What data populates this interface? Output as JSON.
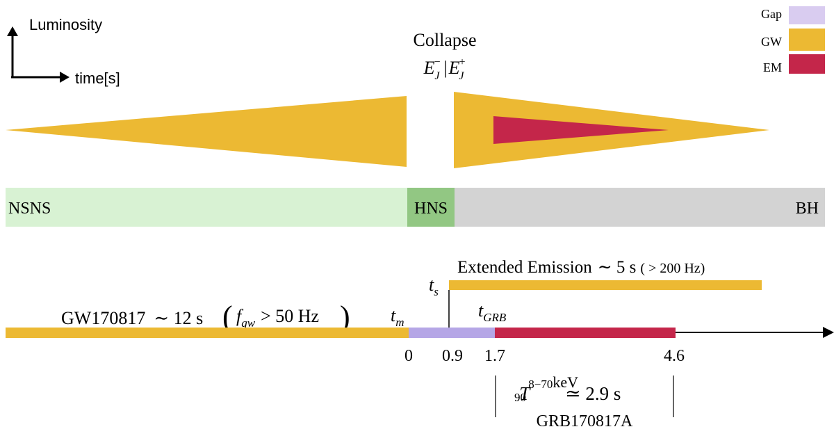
{
  "axes_hint": {
    "y_label": "Luminosity",
    "x_label": "time[s]"
  },
  "legend": {
    "items": [
      {
        "label": "Gap",
        "color": "#d9ccf0"
      },
      {
        "label": "GW",
        "color": "#ecb933"
      },
      {
        "label": "EM",
        "color": "#c4264a"
      }
    ]
  },
  "collapse": {
    "title": "Collapse",
    "energy_symbol": "E",
    "energy_sub": "J",
    "sup_minus": "−",
    "separator": "|",
    "sup_plus": "+"
  },
  "phases": [
    {
      "label": "NSNS",
      "color": "#d8f2d3"
    },
    {
      "label": "HNS",
      "color": "#92c783"
    },
    {
      "label": "BH",
      "color": "#d3d3d3"
    }
  ],
  "extended_emission": {
    "text": "Extended Emission",
    "approx": "∼ 5 s",
    "freq": "( > 200 Hz)"
  },
  "gw_event": {
    "name": "GW170817",
    "approx": "∼ 12 s",
    "f_symbol": "f",
    "f_sub": "gw",
    "freq_rest": "> 50 Hz"
  },
  "time_markers": {
    "t_symbol": "t",
    "t_m_sub": "m",
    "t_s_sub": "s",
    "t_grb_sub": "GRB"
  },
  "ticks": [
    "0",
    "0.9",
    "1.7",
    "4.6"
  ],
  "t90": {
    "symbol": "T",
    "sub": "90",
    "sup": "8−70",
    "unit": "keV",
    "value": "≃ 2.9 s",
    "grb_name": "GRB170817A"
  },
  "colors": {
    "gw": "#ecb933",
    "em": "#c4264a",
    "gap": "#b5a6e6",
    "axis": "#000000"
  }
}
